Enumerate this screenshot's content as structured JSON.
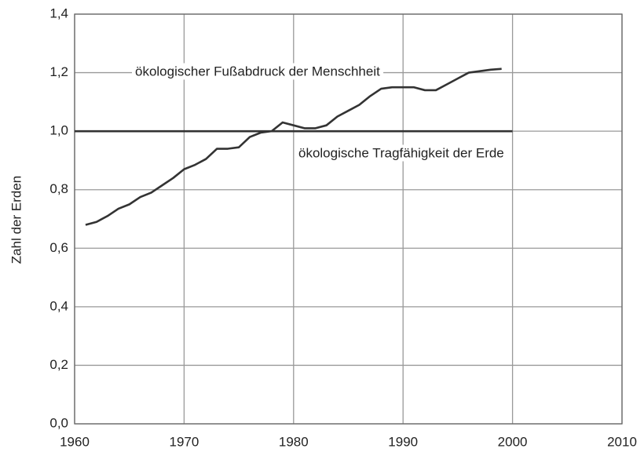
{
  "chart_data": {
    "type": "line",
    "y_label": "Zahl der Erden",
    "xlim": [
      1960,
      2010
    ],
    "xticks": [
      1960,
      1970,
      1980,
      1990,
      2000,
      2010
    ],
    "ylim": [
      0,
      1.4
    ],
    "yticks": [
      {
        "value": 0,
        "label": "0,0"
      },
      {
        "value": 0.2,
        "label": "0,2"
      },
      {
        "value": 0.4,
        "label": "0,4"
      },
      {
        "value": 0.6,
        "label": "0,6"
      },
      {
        "value": 0.8,
        "label": "0,8"
      },
      {
        "value": 1.0,
        "label": "1,0"
      },
      {
        "value": 1.2,
        "label": "1,2"
      },
      {
        "value": 1.4,
        "label": "1,4"
      }
    ],
    "grid": true,
    "series": [
      {
        "name": "ökologischer Fußabdruck der Menschheit",
        "color": "#333333",
        "x": [
          1961,
          1962,
          1963,
          1964,
          1965,
          1966,
          1967,
          1968,
          1969,
          1970,
          1971,
          1972,
          1973,
          1974,
          1975,
          1976,
          1977,
          1978,
          1979,
          1980,
          1981,
          1982,
          1983,
          1984,
          1985,
          1986,
          1987,
          1988,
          1989,
          1990,
          1991,
          1992,
          1993,
          1994,
          1995,
          1996,
          1997,
          1998,
          1999
        ],
        "values": [
          0.68,
          0.69,
          0.71,
          0.735,
          0.75,
          0.775,
          0.79,
          0.815,
          0.84,
          0.87,
          0.885,
          0.905,
          0.94,
          0.94,
          0.945,
          0.98,
          0.995,
          1.0,
          1.03,
          1.02,
          1.01,
          1.01,
          1.02,
          1.05,
          1.07,
          1.09,
          1.12,
          1.145,
          1.15,
          1.15,
          1.15,
          1.14,
          1.14,
          1.16,
          1.18,
          1.2,
          1.205,
          1.21,
          1.213
        ]
      },
      {
        "name": "ökologische Tragfähigkeit der Erde",
        "color": "#333333",
        "x": [
          1960,
          2000
        ],
        "values": [
          1.0,
          1.0
        ]
      }
    ]
  }
}
